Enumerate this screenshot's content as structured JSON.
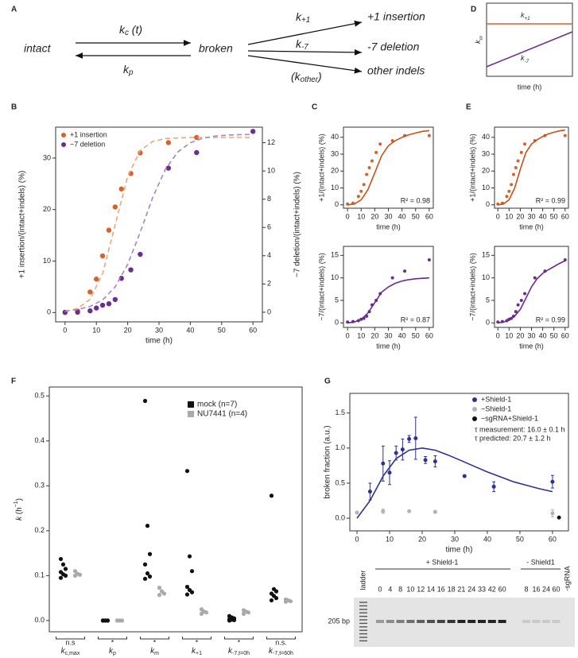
{
  "panel_a": {
    "panel": "A",
    "intact": "intact",
    "broken": "broken",
    "kc": {
      "base": "k",
      "sub": "c",
      "rest": " (t)"
    },
    "kp": {
      "base": "k",
      "sub": "p"
    },
    "k_plus1": {
      "base": "k",
      "sub": "+1"
    },
    "k_minus7": {
      "base": "k",
      "sub": "-7"
    },
    "k_other": {
      "open": "(k",
      "sub": "other",
      "close": ")"
    },
    "outcomes": [
      "+1 insertion",
      "-7 deletion",
      "other indels"
    ]
  },
  "panel_d": {
    "panel": "D",
    "ylabel": {
      "base": "k",
      "sub": "m"
    },
    "xlabel": "time (h)",
    "k_plus1": {
      "base": "k",
      "sub": "+1"
    },
    "k_minus7": {
      "base": "k",
      "sub": "-7"
    }
  },
  "chart_data": [
    {
      "panel": "B",
      "type": "scatter",
      "xlabel": "time (h)",
      "ylabel": "+1 insertion/(intact+indels) (%)",
      "y2label": "−7 deletion/(intact+indels) (%)",
      "xlim": [
        -3,
        63
      ],
      "xticks": [
        0,
        10,
        20,
        30,
        40,
        50,
        60
      ],
      "ylim": [
        -1.8,
        36
      ],
      "yticks": [
        0,
        10,
        20,
        30
      ],
      "y2lim": [
        -0.68,
        13.1
      ],
      "y2ticks": [
        0,
        2,
        4,
        6,
        8,
        10,
        12
      ],
      "legend": "top-left",
      "series": [
        {
          "name": "+1 insertion",
          "color": "#d4622a",
          "mode": "markers",
          "x": [
            0,
            4,
            8,
            10,
            12,
            14,
            16,
            18,
            21,
            24,
            33,
            42,
            60
          ],
          "values": [
            0,
            0.3,
            4,
            6.5,
            11,
            16,
            20.5,
            24,
            27,
            31,
            33,
            34,
            null
          ]
        },
        {
          "name": "−7 deletion",
          "color": "#6b2d8e",
          "mode": "markers",
          "axis": "y2",
          "x": [
            0,
            4,
            8,
            10,
            12,
            14,
            16,
            18,
            21,
            24,
            33,
            42,
            60
          ],
          "values": [
            0,
            0,
            0.1,
            0.3,
            0.5,
            0.6,
            0.9,
            2.4,
            3,
            4.1,
            10.2,
            11.3,
            12.8
          ]
        },
        {
          "color": "#eba777",
          "mode": "line",
          "dash": true,
          "x": [
            0,
            4,
            8,
            12,
            16,
            20,
            24,
            28,
            32,
            36,
            40,
            44,
            48,
            52,
            56,
            60
          ],
          "values": [
            0.23,
            0.78,
            2.58,
            7.57,
            17,
            26.4,
            31.5,
            33.2,
            33.8,
            33.9,
            34,
            34,
            34,
            34,
            34,
            34
          ]
        },
        {
          "color": "#a585c4",
          "mode": "line",
          "dash": true,
          "axis": "y2",
          "x": [
            0,
            4,
            8,
            12,
            16,
            20,
            24,
            28,
            32,
            36,
            40,
            44,
            48,
            52,
            56,
            60
          ],
          "values": [
            0.08,
            0.19,
            0.41,
            0.87,
            1.79,
            3.39,
            5.67,
            8.13,
            10.1,
            11.34,
            12,
            12.32,
            12.47,
            12.54,
            12.57,
            12.58
          ]
        }
      ]
    },
    {
      "panel": "C",
      "type": "scatter",
      "xlabel": "time (h)",
      "ylabel": "+1/(intact+indels) (%)",
      "note": "R² = 0.98",
      "xlim": [
        -3,
        63
      ],
      "xticks": [
        0,
        10,
        20,
        30,
        40,
        50,
        60
      ],
      "ylim": [
        -2,
        46
      ],
      "yticks": [
        0,
        10,
        20,
        30,
        40
      ],
      "series": [
        {
          "color": "#d4622a",
          "mode": "markers",
          "x": [
            0,
            4,
            8,
            10,
            12,
            14,
            16,
            18,
            21,
            24,
            33,
            42,
            60
          ],
          "values": [
            0.5,
            1,
            5,
            8,
            12,
            18,
            22,
            26,
            31,
            36,
            38,
            41,
            41
          ]
        },
        {
          "color": "#c8501a",
          "mode": "line",
          "x": [
            0,
            5,
            10,
            15,
            20,
            25,
            30,
            35,
            40,
            45,
            50,
            55,
            60
          ],
          "values": [
            0,
            0.5,
            3,
            9,
            19,
            29,
            35,
            38,
            40,
            41.5,
            42.5,
            43.5,
            44
          ]
        }
      ]
    },
    {
      "type": "scatter",
      "xlabel": "time (h)",
      "ylabel": "−7/(intact+indels) (%)",
      "note": "R² = 0.87",
      "xlim": [
        -3,
        63
      ],
      "xticks": [
        0,
        10,
        20,
        30,
        40,
        50,
        60
      ],
      "ylim": [
        -1,
        17
      ],
      "yticks": [
        0,
        5,
        10,
        15
      ],
      "series": [
        {
          "color": "#6b2d8e",
          "mode": "markers",
          "x": [
            0,
            4,
            8,
            10,
            12,
            14,
            16,
            18,
            21,
            24,
            33,
            42,
            60
          ],
          "values": [
            0.2,
            0.3,
            0.5,
            0.8,
            1,
            1.5,
            2.5,
            4,
            5,
            6.5,
            10,
            11.5,
            14
          ]
        },
        {
          "color": "#6a2a8a",
          "mode": "line",
          "x": [
            0,
            5,
            10,
            15,
            20,
            25,
            30,
            35,
            40,
            45,
            50,
            55,
            60
          ],
          "values": [
            0,
            0.2,
            0.8,
            2.2,
            4.5,
            6.8,
            8,
            8.8,
            9.3,
            9.6,
            9.8,
            9.9,
            10
          ]
        }
      ]
    },
    {
      "panel": "E",
      "type": "scatter",
      "xlabel": "time (h)",
      "ylabel": "+1/(intact+indels) (%)",
      "note": "R² = 0.99",
      "xlim": [
        -3,
        63
      ],
      "xticks": [
        0,
        10,
        20,
        30,
        40,
        50,
        60
      ],
      "ylim": [
        -2,
        46
      ],
      "yticks": [
        0,
        10,
        20,
        30,
        40
      ],
      "series": [
        {
          "color": "#d4622a",
          "mode": "markers",
          "x": [
            0,
            4,
            8,
            10,
            12,
            14,
            16,
            18,
            21,
            24,
            33,
            42,
            60
          ],
          "values": [
            0.5,
            1,
            5,
            8,
            12,
            18,
            22,
            26,
            31,
            36,
            38,
            41,
            41
          ]
        },
        {
          "color": "#c8501a",
          "mode": "line",
          "x": [
            0,
            5,
            10,
            15,
            20,
            25,
            30,
            35,
            40,
            45,
            50,
            55,
            60
          ],
          "values": [
            0,
            0.5,
            3,
            10,
            21,
            31,
            36,
            38.5,
            40.5,
            42,
            43,
            43.8,
            44.3
          ]
        }
      ]
    },
    {
      "type": "scatter",
      "xlabel": "time (h)",
      "ylabel": "−7/(intact+indels) (%)",
      "note": "R² = 0.99",
      "xlim": [
        -3,
        63
      ],
      "xticks": [
        0,
        10,
        20,
        30,
        40,
        50,
        60
      ],
      "ylim": [
        -1,
        17
      ],
      "yticks": [
        0,
        5,
        10,
        15
      ],
      "series": [
        {
          "color": "#6b2d8e",
          "mode": "markers",
          "x": [
            0,
            4,
            8,
            10,
            12,
            14,
            16,
            18,
            21,
            24,
            33,
            42,
            60
          ],
          "values": [
            0.2,
            0.3,
            0.5,
            0.8,
            1,
            1.5,
            2.5,
            4,
            5,
            6.5,
            10,
            11.5,
            14
          ]
        },
        {
          "color": "#6a2a8a",
          "mode": "line",
          "x": [
            0,
            5,
            10,
            15,
            20,
            25,
            30,
            35,
            40,
            45,
            50,
            55,
            60
          ],
          "values": [
            0,
            0.2,
            0.6,
            1.5,
            3,
            5.5,
            8,
            9.8,
            11,
            11.8,
            12.5,
            13.2,
            13.8
          ]
        }
      ]
    },
    {
      "panel": "F",
      "type": "strip",
      "ylabel": {
        "base": "k",
        "rest": " (h",
        "sup": "−1",
        "end": ")"
      },
      "ylim": [
        -0.025,
        0.52
      ],
      "yticks": [
        {
          "value": 0,
          "label": "0.0"
        },
        0.1,
        0.2,
        0.3,
        0.4,
        0.5
      ],
      "legend": "top-right",
      "categories": [
        {
          "base": "k",
          "sub": "c,max"
        },
        {
          "base": "k",
          "sub": "p"
        },
        {
          "base": "k",
          "sub": "m"
        },
        {
          "base": "k",
          "sub": "+1"
        },
        {
          "base": "k",
          "sub": "-7,t=0h"
        },
        {
          "base": "k",
          "sub": "-7,t=60h"
        }
      ],
      "annotations": [
        "n.s",
        "*",
        "*",
        "*",
        "*",
        "n.s."
      ],
      "series": [
        {
          "name": "mock (n=7)",
          "color": "#111111",
          "values": [
            [
              0.137,
              0.125,
              0.115,
              0.108,
              0.103,
              0.1,
              0.095
            ],
            [
              0,
              0,
              0,
              0,
              0,
              0,
              0
            ],
            [
              0.489,
              0.211,
              0.148,
              0.125,
              0.105,
              0.098,
              0.093
            ],
            [
              0.333,
              0.143,
              0.11,
              0.075,
              0.068,
              0.063,
              0.058
            ],
            [
              0.01,
              0.007,
              0.005,
              0.003,
              0.002,
              0.001,
              0
            ],
            [
              0.278,
              0.07,
              0.065,
              0.06,
              0.055,
              0.05,
              0.045
            ]
          ]
        },
        {
          "name": "NU7441 (n=4)",
          "color": "#aaaaaa",
          "values": [
            [
              0.11,
              0.104,
              0.102,
              0.1
            ],
            [
              0,
              0,
              0,
              0
            ],
            [
              0.073,
              0.065,
              0.06,
              0.057
            ],
            [
              0.025,
              0.02,
              0.018,
              0.015
            ],
            [
              0.023,
              0.02,
              0.018,
              0.015
            ],
            [
              0.047,
              0.045,
              0.043,
              0.042
            ]
          ]
        }
      ]
    },
    {
      "panel": "G",
      "type": "errorbar",
      "xlabel": "time (h)",
      "ylabel": "broken fraction (a.u.)",
      "xlim": [
        -2.2,
        64.9
      ],
      "xticks": [
        0,
        10,
        20,
        30,
        40,
        50,
        60
      ],
      "ylim": [
        -0.18,
        1.78
      ],
      "yticks": [
        {
          "value": 0,
          "label": "0.0"
        },
        0.5,
        {
          "value": 1,
          "label": "1.0"
        },
        1.5
      ],
      "legend": "top-right",
      "notes": [
        "τ measurement: 16.0 ± 0.1 h",
        "τ predicted: 20.7 ± 1.2 h"
      ],
      "series": [
        {
          "name": "+Shield-1",
          "color": "#2e3192",
          "x": [
            4,
            8,
            10,
            12,
            14,
            16,
            18,
            21,
            24,
            33,
            42,
            60
          ],
          "values": [
            0.38,
            0.78,
            0.65,
            0.93,
            0.98,
            1.13,
            1.14,
            0.83,
            0.81,
            0.6,
            0.45,
            0.52
          ],
          "errors": [
            0.12,
            0.25,
            0.17,
            0.1,
            0.15,
            0.05,
            0.3,
            0.05,
            0.08,
            0.01,
            0.07,
            0.09
          ]
        },
        {
          "name": "−Shield-1",
          "color": "#b3b3b3",
          "x": [
            0,
            8,
            16,
            24,
            60
          ],
          "values": [
            0.08,
            0.1,
            0.1,
            0.09,
            0.07
          ],
          "errors": [
            0.01,
            0.03,
            0.01,
            0.02,
            0.05
          ]
        },
        {
          "name": "−sgRNA+Shield-1",
          "color": "#111111",
          "x": [
            62
          ],
          "values": [
            0.01
          ]
        },
        {
          "color": "#2e3192",
          "mode": "line",
          "x": [
            0,
            4,
            8,
            12,
            16,
            20,
            24,
            28,
            32,
            36,
            40,
            44,
            48,
            52,
            56,
            60
          ],
          "values": [
            0,
            0.25,
            0.6,
            0.85,
            0.97,
            1.0,
            0.97,
            0.9,
            0.82,
            0.74,
            0.66,
            0.59,
            0.52,
            0.47,
            0.42,
            0.38
          ]
        }
      ]
    }
  ],
  "gel": {
    "ladder": "ladder",
    "plus": "+ Shield-1",
    "minus": "- Shield1",
    "sgrna": "-sgRNA",
    "size": "205 bp",
    "lanes_plus": [
      "0",
      "4",
      "8",
      "10",
      "12",
      "14",
      "16",
      "18",
      "21",
      "24",
      "33",
      "42",
      "60"
    ],
    "lanes_minus": [
      "8",
      "16",
      "24",
      "60"
    ]
  }
}
